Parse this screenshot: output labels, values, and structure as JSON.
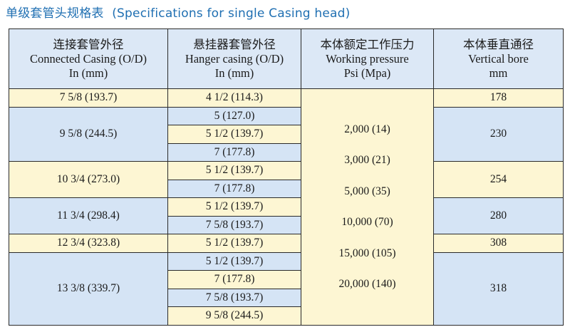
{
  "title": {
    "zh": "单级套管头规格表",
    "en": "(Specifications for single Casing head)"
  },
  "headers": [
    [
      "连接套管外径",
      "Connected Casing (O/D)",
      "In  (mm)"
    ],
    [
      "悬挂器套管外径",
      "Hanger casing (O/D)",
      "In  (mm)"
    ],
    [
      "本体额定工作压力",
      "Working pressure",
      "Psi  (Mpa)"
    ],
    [
      "本体垂直通径",
      "Vertical bore",
      "mm"
    ]
  ],
  "connected": [
    "7 5/8  (193.7)",
    "9 5/8  (244.5)",
    "10 3/4  (273.0)",
    "11 3/4  (298.4)",
    "12 3/4  (323.8)",
    "13 3/8  (339.7)"
  ],
  "hanger": [
    "4 1/2  (114.3)",
    "5    (127.0)",
    "5 1/2  (139.7)",
    "7    (177.8)",
    "5 1/2  (139.7)",
    "7    (177.8)",
    "5 1/2  (139.7)",
    "7 5/8  (193.7)",
    "5 1/2  (139.7)",
    "5 1/2  (139.7)",
    "7    (177.8)",
    "7 5/8  (193.7)",
    "9 5/8  (244.5)"
  ],
  "pressures": [
    "2,000  (14)",
    "3,000  (21)",
    "5,000  (35)",
    "10,000  (70)",
    "15,000  (105)",
    "20,000  (140)"
  ],
  "bore": [
    "178",
    "230",
    "254",
    "280",
    "308",
    "318"
  ]
}
